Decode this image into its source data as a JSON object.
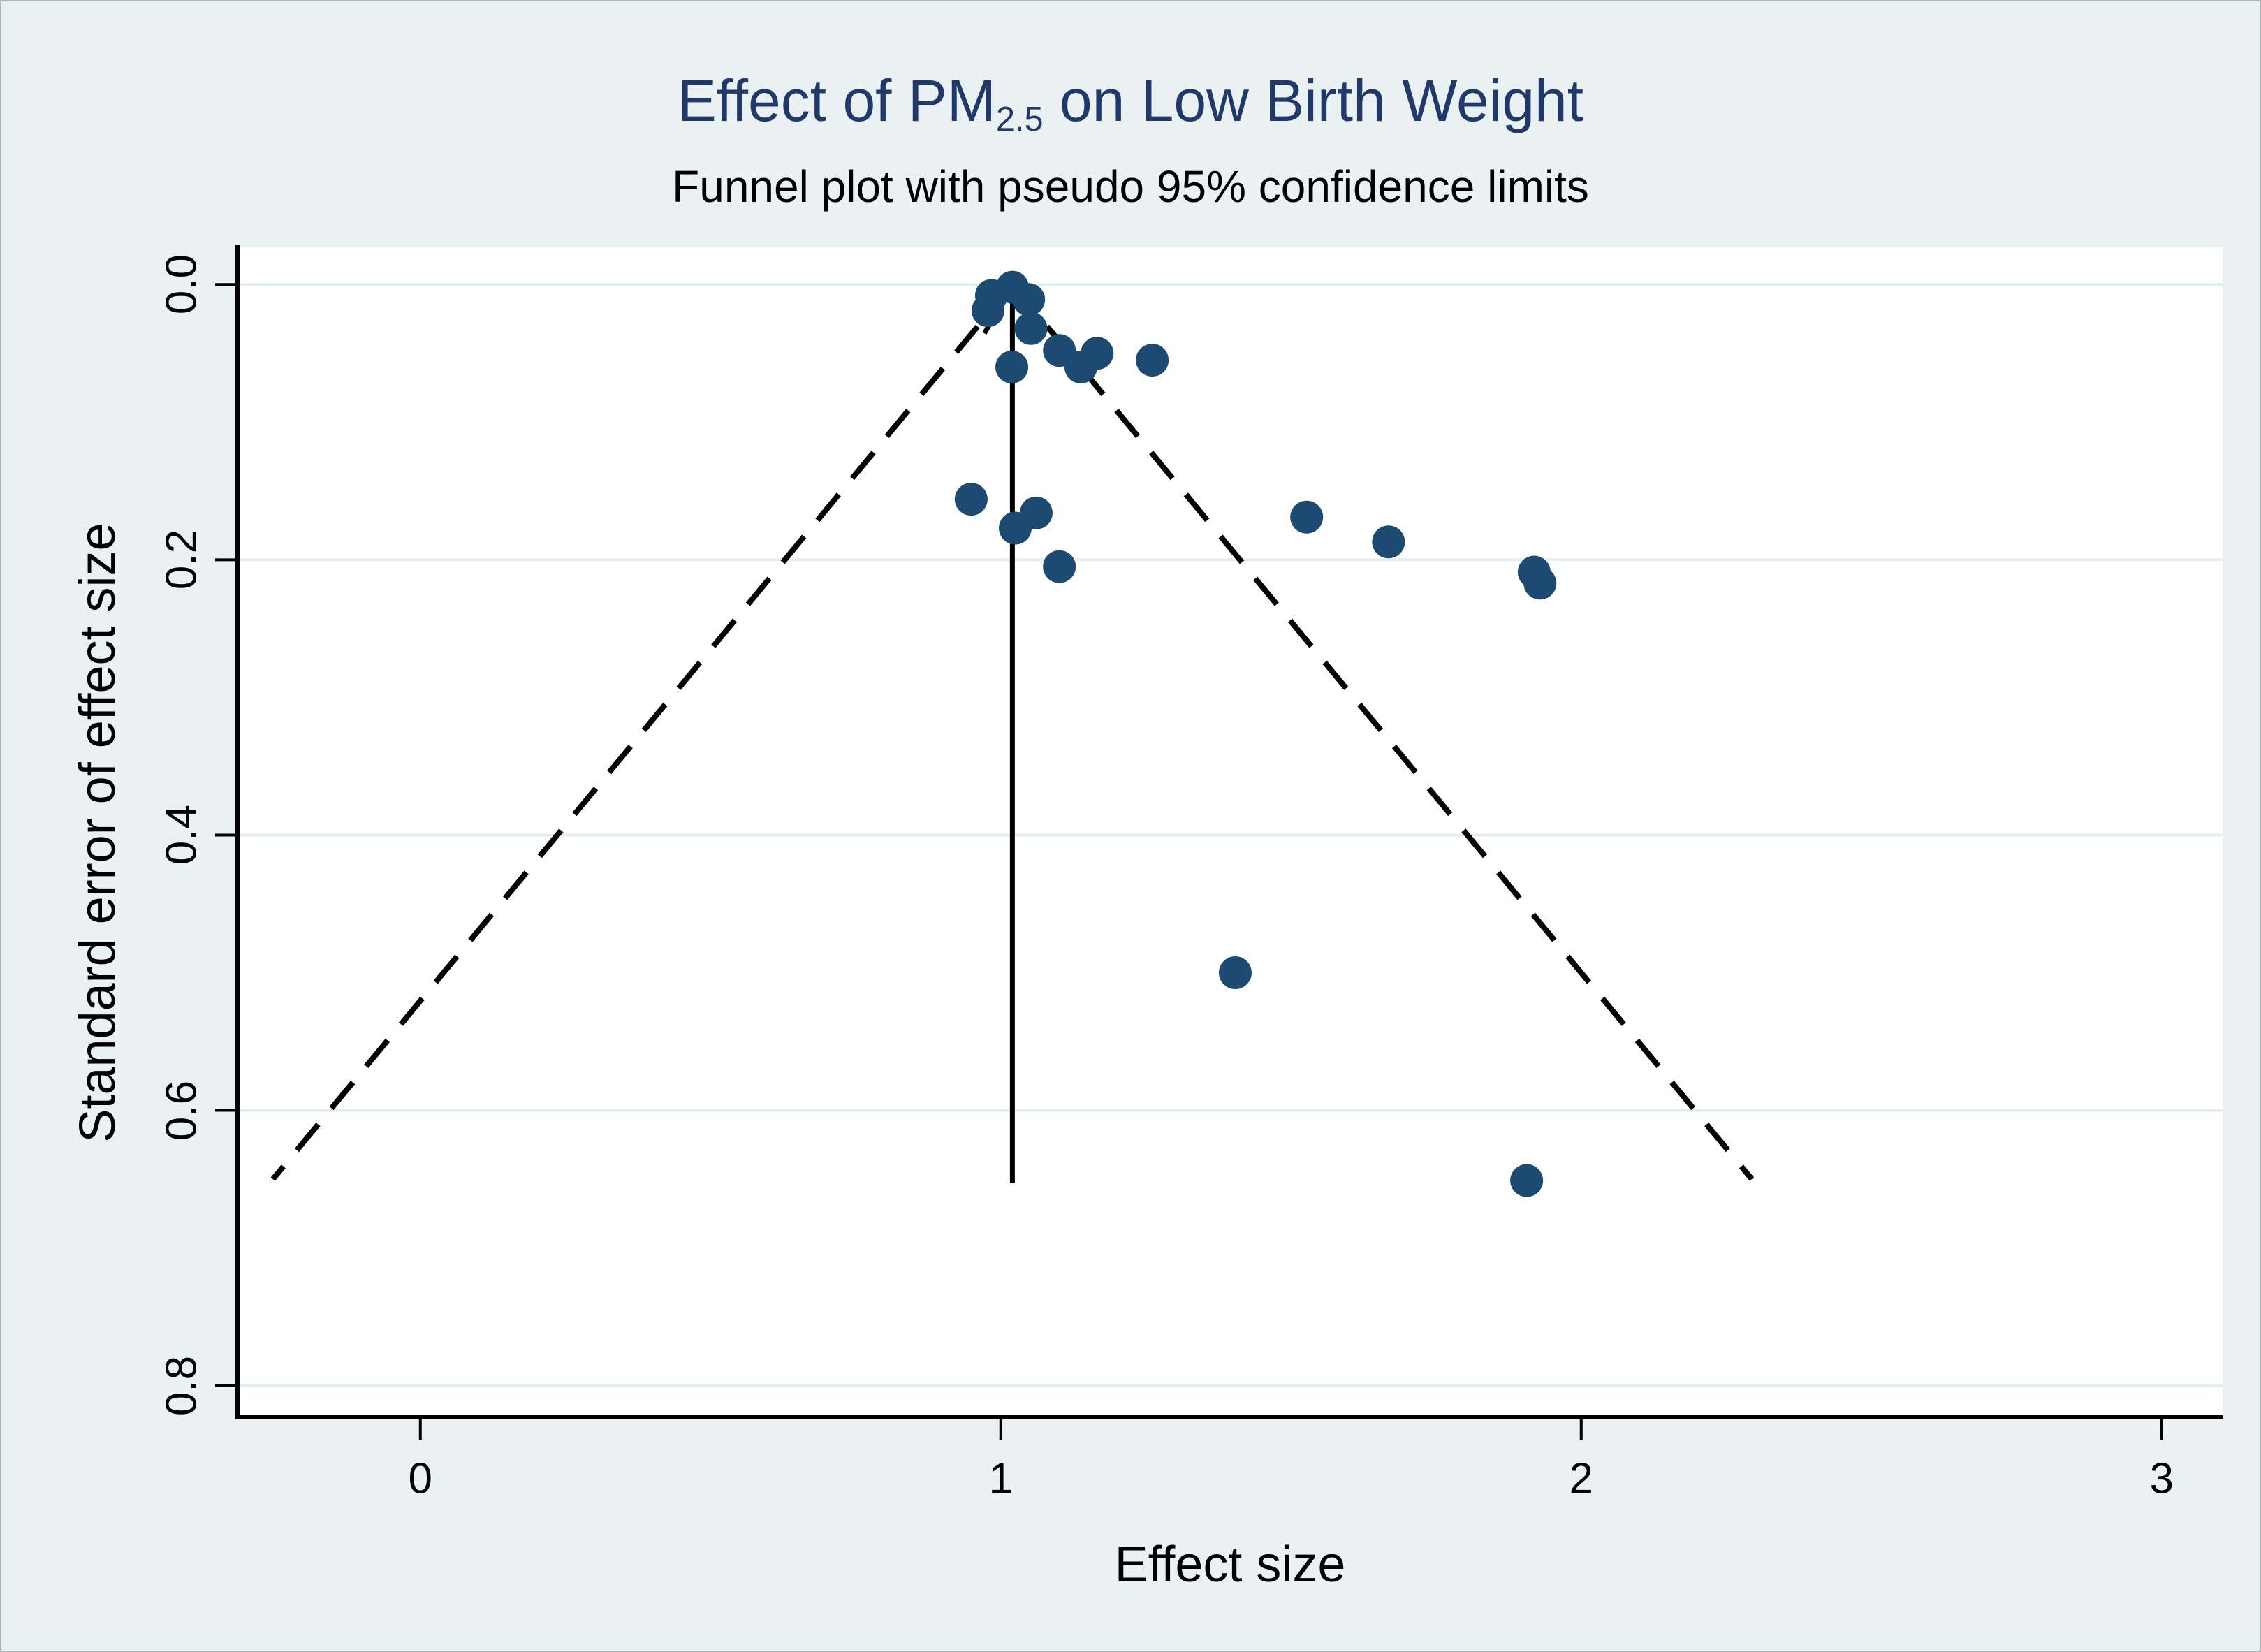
{
  "chart_data": {
    "type": "scatter",
    "variant": "funnel-plot",
    "title": {
      "prefix": "Effect of PM",
      "subscript": "2.5",
      "suffix": " on Low Birth Weight"
    },
    "subtitle": "Funnel plot with pseudo 95% confidence limits",
    "xlabel": "Effect size",
    "ylabel": "Standard error of effect size",
    "x_ticks": [
      {
        "value": 0,
        "label": "0"
      },
      {
        "value": 1,
        "label": "1"
      },
      {
        "value": 2,
        "label": "2"
      },
      {
        "value": 3,
        "label": "3"
      }
    ],
    "y_ticks": [
      {
        "value": 0.0,
        "label": "0.0"
      },
      {
        "value": 0.2,
        "label": "0.2"
      },
      {
        "value": 0.4,
        "label": "0.4"
      },
      {
        "value": 0.6,
        "label": "0.6"
      },
      {
        "value": 0.8,
        "label": "0.8"
      }
    ],
    "xlim": [
      -0.315,
      3.105
    ],
    "ylim": [
      -0.027,
      0.823
    ],
    "y_axis_inverted": true,
    "grid": "horizontal-only",
    "pooled_effect_line": {
      "x": 1.02,
      "se_from": 0.0,
      "se_to": 0.653,
      "arrow": "up"
    },
    "funnel_limits": {
      "center": 1.02,
      "z": 1.96,
      "se_max": 0.65,
      "style": "dashed"
    },
    "points_effect_se": [
      [
        1.02,
        0.002
      ],
      [
        0.984,
        0.008
      ],
      [
        0.978,
        0.019
      ],
      [
        1.048,
        0.011
      ],
      [
        1.052,
        0.032
      ],
      [
        1.019,
        0.06
      ],
      [
        1.101,
        0.048
      ],
      [
        1.138,
        0.06
      ],
      [
        1.166,
        0.05
      ],
      [
        1.261,
        0.055
      ],
      [
        0.949,
        0.156
      ],
      [
        1.025,
        0.177
      ],
      [
        1.061,
        0.166
      ],
      [
        1.101,
        0.205
      ],
      [
        1.527,
        0.169
      ],
      [
        1.668,
        0.187
      ],
      [
        1.919,
        0.209
      ],
      [
        1.929,
        0.217
      ],
      [
        1.404,
        0.5
      ],
      [
        1.906,
        0.651
      ]
    ],
    "colors": {
      "background": "#eaf1f2",
      "plot_background": "#ffffff",
      "gridline": "#e1eff1",
      "axis": "#000000",
      "marker": "#1d4a70",
      "title": "#21386b",
      "subtitle": "#000000",
      "funnel_lines": "#000000"
    }
  }
}
